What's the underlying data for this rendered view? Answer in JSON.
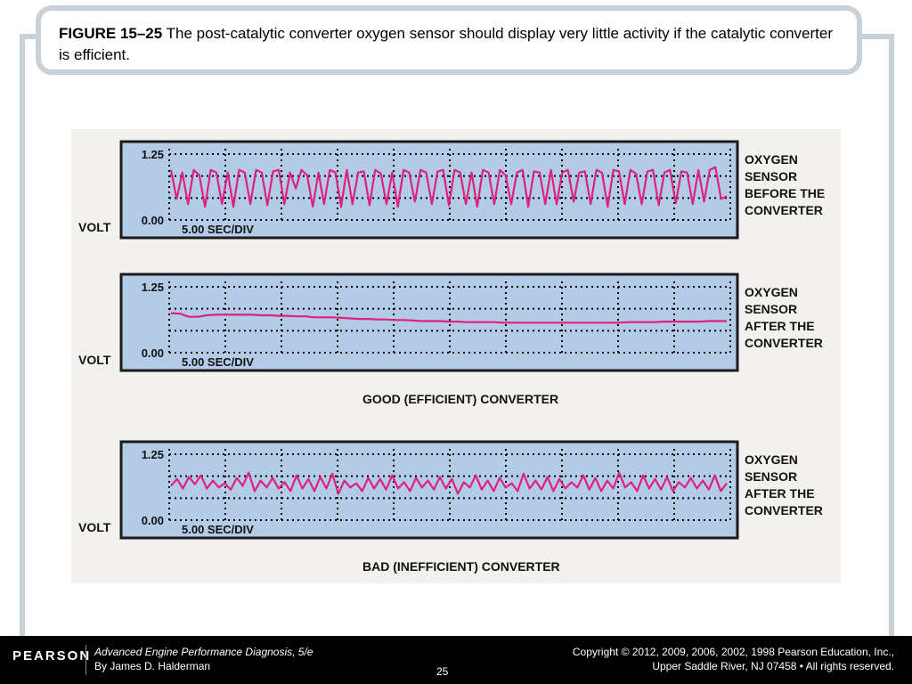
{
  "caption": {
    "figure_label": "FIGURE 15–25",
    "text": "The post-catalytic converter oxygen sensor should display very little activity if the catalytic converter is efficient."
  },
  "chart_data": [
    {
      "type": "line",
      "ylim": [
        0.0,
        1.25
      ],
      "y_tick_labels": [
        "1.25",
        "0.00"
      ],
      "ylabel": "VOLT",
      "xlabel": "5.00 SEC/DIV",
      "side_label": [
        "OXYGEN",
        "SENSOR",
        "BEFORE THE",
        "CONVERTER"
      ],
      "group_label": "",
      "series": [
        {
          "values": [
            0.95,
            0.4,
            0.9,
            0.3,
            0.95,
            0.85,
            0.25,
            0.95,
            0.9,
            0.3,
            0.9,
            0.25,
            0.95,
            0.9,
            0.3,
            0.95,
            0.9,
            0.28,
            0.92,
            0.95,
            0.3,
            0.9,
            0.6,
            0.95,
            0.85,
            0.25,
            0.9,
            0.3,
            0.95,
            0.9,
            0.25,
            0.95,
            0.3,
            0.9,
            0.92,
            0.28,
            0.95,
            0.88,
            0.3,
            0.9,
            0.25,
            0.95,
            0.9,
            0.35,
            0.95,
            0.9,
            0.3,
            0.92,
            0.95,
            0.28,
            0.95,
            0.9,
            0.3,
            0.9,
            0.25,
            0.95,
            0.9,
            0.3,
            0.95,
            0.85,
            0.3,
            0.9,
            0.95,
            0.25,
            0.92,
            0.9,
            0.3,
            0.95,
            0.3,
            0.9,
            0.95,
            0.35,
            0.9,
            0.92,
            0.3,
            0.95,
            0.9,
            0.25,
            0.95,
            0.92,
            0.3,
            0.95,
            0.88,
            0.3,
            0.92,
            0.95,
            0.28,
            0.9,
            0.95,
            0.32,
            0.92,
            0.9,
            0.3,
            0.95,
            0.35,
            0.95,
            1.0,
            0.4,
            0.45
          ]
        }
      ]
    },
    {
      "type": "line",
      "ylim": [
        0.0,
        1.25
      ],
      "y_tick_labels": [
        "1.25",
        "0.00"
      ],
      "ylabel": "VOLT",
      "xlabel": "5.00 SEC/DIV",
      "side_label": [
        "OXYGEN",
        "SENSOR",
        "AFTER THE",
        "CONVERTER"
      ],
      "group_label": "GOOD (EFFICIENT) CONVERTER",
      "series": [
        {
          "values": [
            0.75,
            0.74,
            0.68,
            0.68,
            0.71,
            0.72,
            0.72,
            0.72,
            0.72,
            0.72,
            0.71,
            0.71,
            0.7,
            0.7,
            0.69,
            0.69,
            0.67,
            0.67,
            0.67,
            0.66,
            0.65,
            0.64,
            0.64,
            0.63,
            0.63,
            0.62,
            0.62,
            0.61,
            0.6,
            0.6,
            0.6,
            0.59,
            0.59,
            0.58,
            0.58,
            0.58,
            0.58,
            0.57,
            0.57,
            0.57,
            0.57,
            0.57,
            0.57,
            0.57,
            0.57,
            0.57,
            0.57,
            0.57,
            0.57,
            0.57,
            0.57,
            0.58,
            0.58,
            0.58,
            0.58,
            0.59,
            0.59,
            0.59,
            0.59,
            0.59,
            0.6,
            0.6,
            0.6
          ]
        }
      ]
    },
    {
      "type": "line",
      "ylim": [
        0.0,
        1.25
      ],
      "y_tick_labels": [
        "1.25",
        "0.00"
      ],
      "ylabel": "VOLT",
      "xlabel": "5.00 SEC/DIV",
      "side_label": [
        "OXYGEN",
        "SENSOR",
        "AFTER THE",
        "CONVERTER"
      ],
      "group_label": "BAD (INEFFICIENT) CONVERTER",
      "series": [
        {
          "values": [
            0.65,
            0.78,
            0.6,
            0.82,
            0.68,
            0.85,
            0.6,
            0.75,
            0.62,
            0.7,
            0.58,
            0.8,
            0.65,
            0.9,
            0.55,
            0.75,
            0.62,
            0.8,
            0.6,
            0.72,
            0.55,
            0.85,
            0.6,
            0.78,
            0.55,
            0.82,
            0.6,
            0.88,
            0.5,
            0.75,
            0.62,
            0.7,
            0.55,
            0.8,
            0.6,
            0.78,
            0.58,
            0.85,
            0.6,
            0.72,
            0.55,
            0.8,
            0.62,
            0.75,
            0.58,
            0.82,
            0.6,
            0.78,
            0.5,
            0.72,
            0.62,
            0.85,
            0.58,
            0.75,
            0.55,
            0.8,
            0.62,
            0.7,
            0.55,
            0.88,
            0.6,
            0.75,
            0.58,
            0.82,
            0.55,
            0.78,
            0.6,
            0.72,
            0.62,
            0.85,
            0.58,
            0.8,
            0.55,
            0.75,
            0.6,
            0.9,
            0.62,
            0.72,
            0.55,
            0.85,
            0.6,
            0.78,
            0.58,
            0.82,
            0.55,
            0.72,
            0.62,
            0.8,
            0.6,
            0.75,
            0.58,
            0.85,
            0.55,
            0.7
          ]
        }
      ]
    }
  ],
  "footer": {
    "logo": "PEARSON",
    "book_title": "Advanced Engine Performance Diagnosis, 5/e",
    "author": "By James D. Halderman",
    "page": "25",
    "copyright_line1": "Copyright © 2012, 2009, 2006, 2002, 1998 Pearson Education, Inc.,",
    "copyright_line2": "Upper Saddle River, NJ 07458 • All rights reserved."
  },
  "colors": {
    "plot_bg": "#b3cbe6",
    "trace": "#e0207f",
    "grid": "#000000",
    "frame": "#c9d1d6"
  }
}
